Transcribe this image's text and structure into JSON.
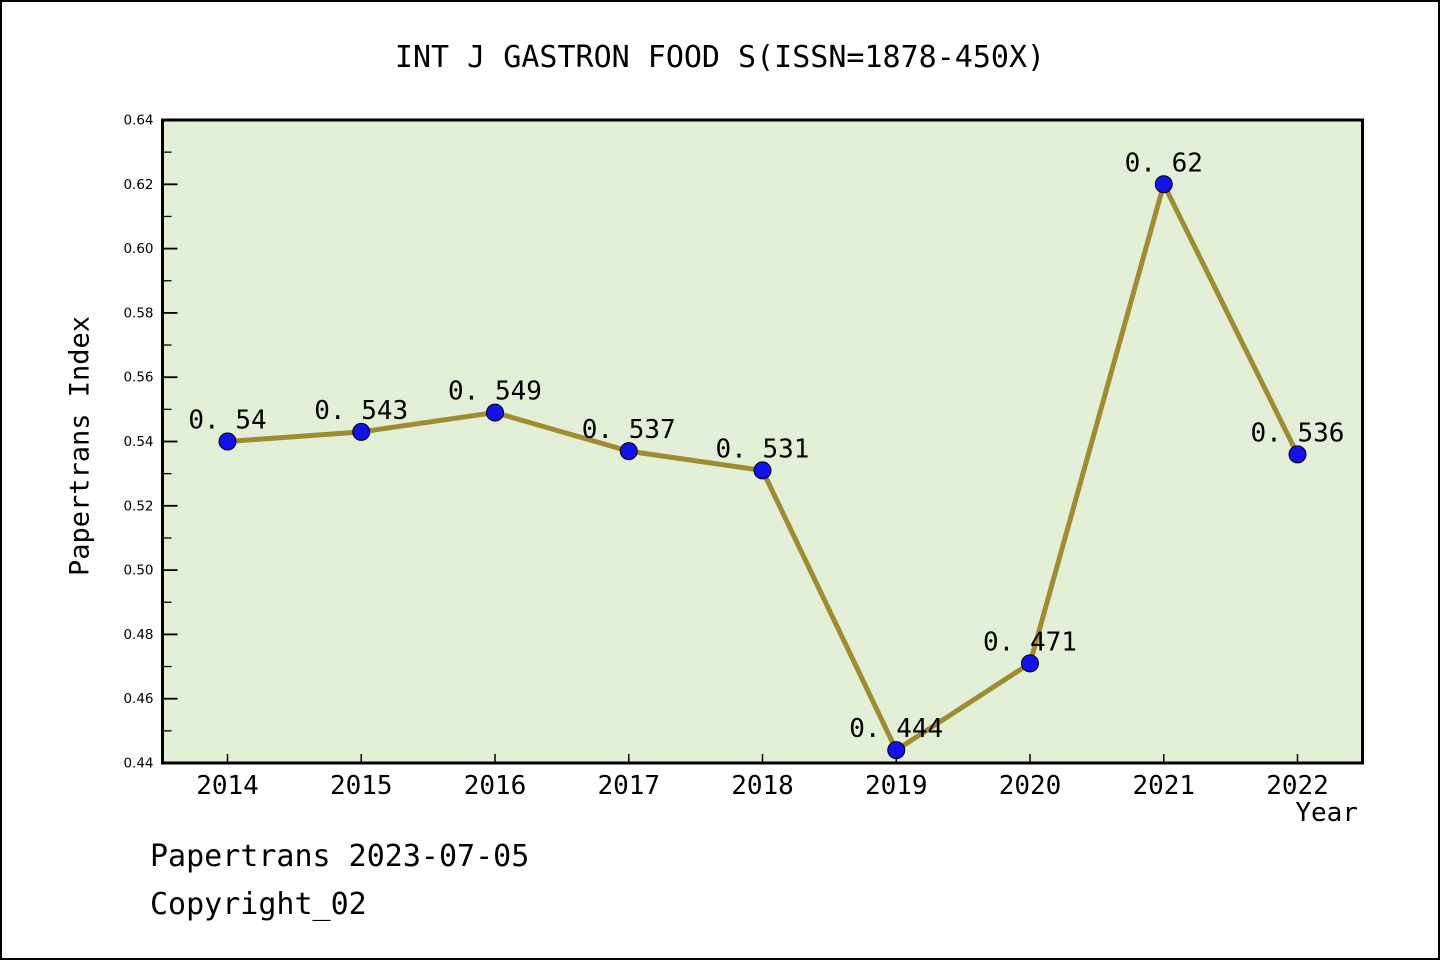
{
  "chart_data": {
    "type": "line",
    "title": "INT J GASTRON FOOD S(ISSN=1878-450X)",
    "xlabel": "Year",
    "ylabel": "Papertrans Index",
    "x": [
      2014,
      2015,
      2016,
      2017,
      2018,
      2019,
      2020,
      2021,
      2022
    ],
    "values": [
      0.54,
      0.543,
      0.549,
      0.537,
      0.531,
      0.444,
      0.471,
      0.62,
      0.536
    ],
    "point_labels": [
      "0. 54",
      "0. 543",
      "0. 549",
      "0. 537",
      "0. 531",
      "0. 444",
      "0. 471",
      "0. 62",
      "0. 536"
    ],
    "xtick_labels": [
      "2014",
      "2015",
      "2016",
      "2017",
      "2018",
      "2019",
      "2020",
      "2021",
      "2022"
    ],
    "ylim": [
      0.44,
      0.64
    ],
    "ytick_values": [
      0.44,
      0.46,
      0.48,
      0.5,
      0.52,
      0.54,
      0.56,
      0.58,
      0.6,
      0.62,
      0.64
    ],
    "ytick_labels": [
      "0.44",
      "0.46",
      "0.48",
      "0.50",
      "0.52",
      "0.54",
      "0.56",
      "0.58",
      "0.60",
      "0.62",
      "0.64"
    ],
    "minor_ytick_step": 0.01,
    "grid": "off",
    "legend": "none",
    "colors": {
      "line": "#a08c30",
      "marker": "#1212ee",
      "marker_edge": "#000000",
      "plot_bg": "#e2efd6",
      "plot_border": "#000000",
      "text": "#000000",
      "page_bg": "#ffffff"
    }
  },
  "footer": {
    "line1": "Papertrans 2023-07-05",
    "line2": "Copyright_02"
  }
}
